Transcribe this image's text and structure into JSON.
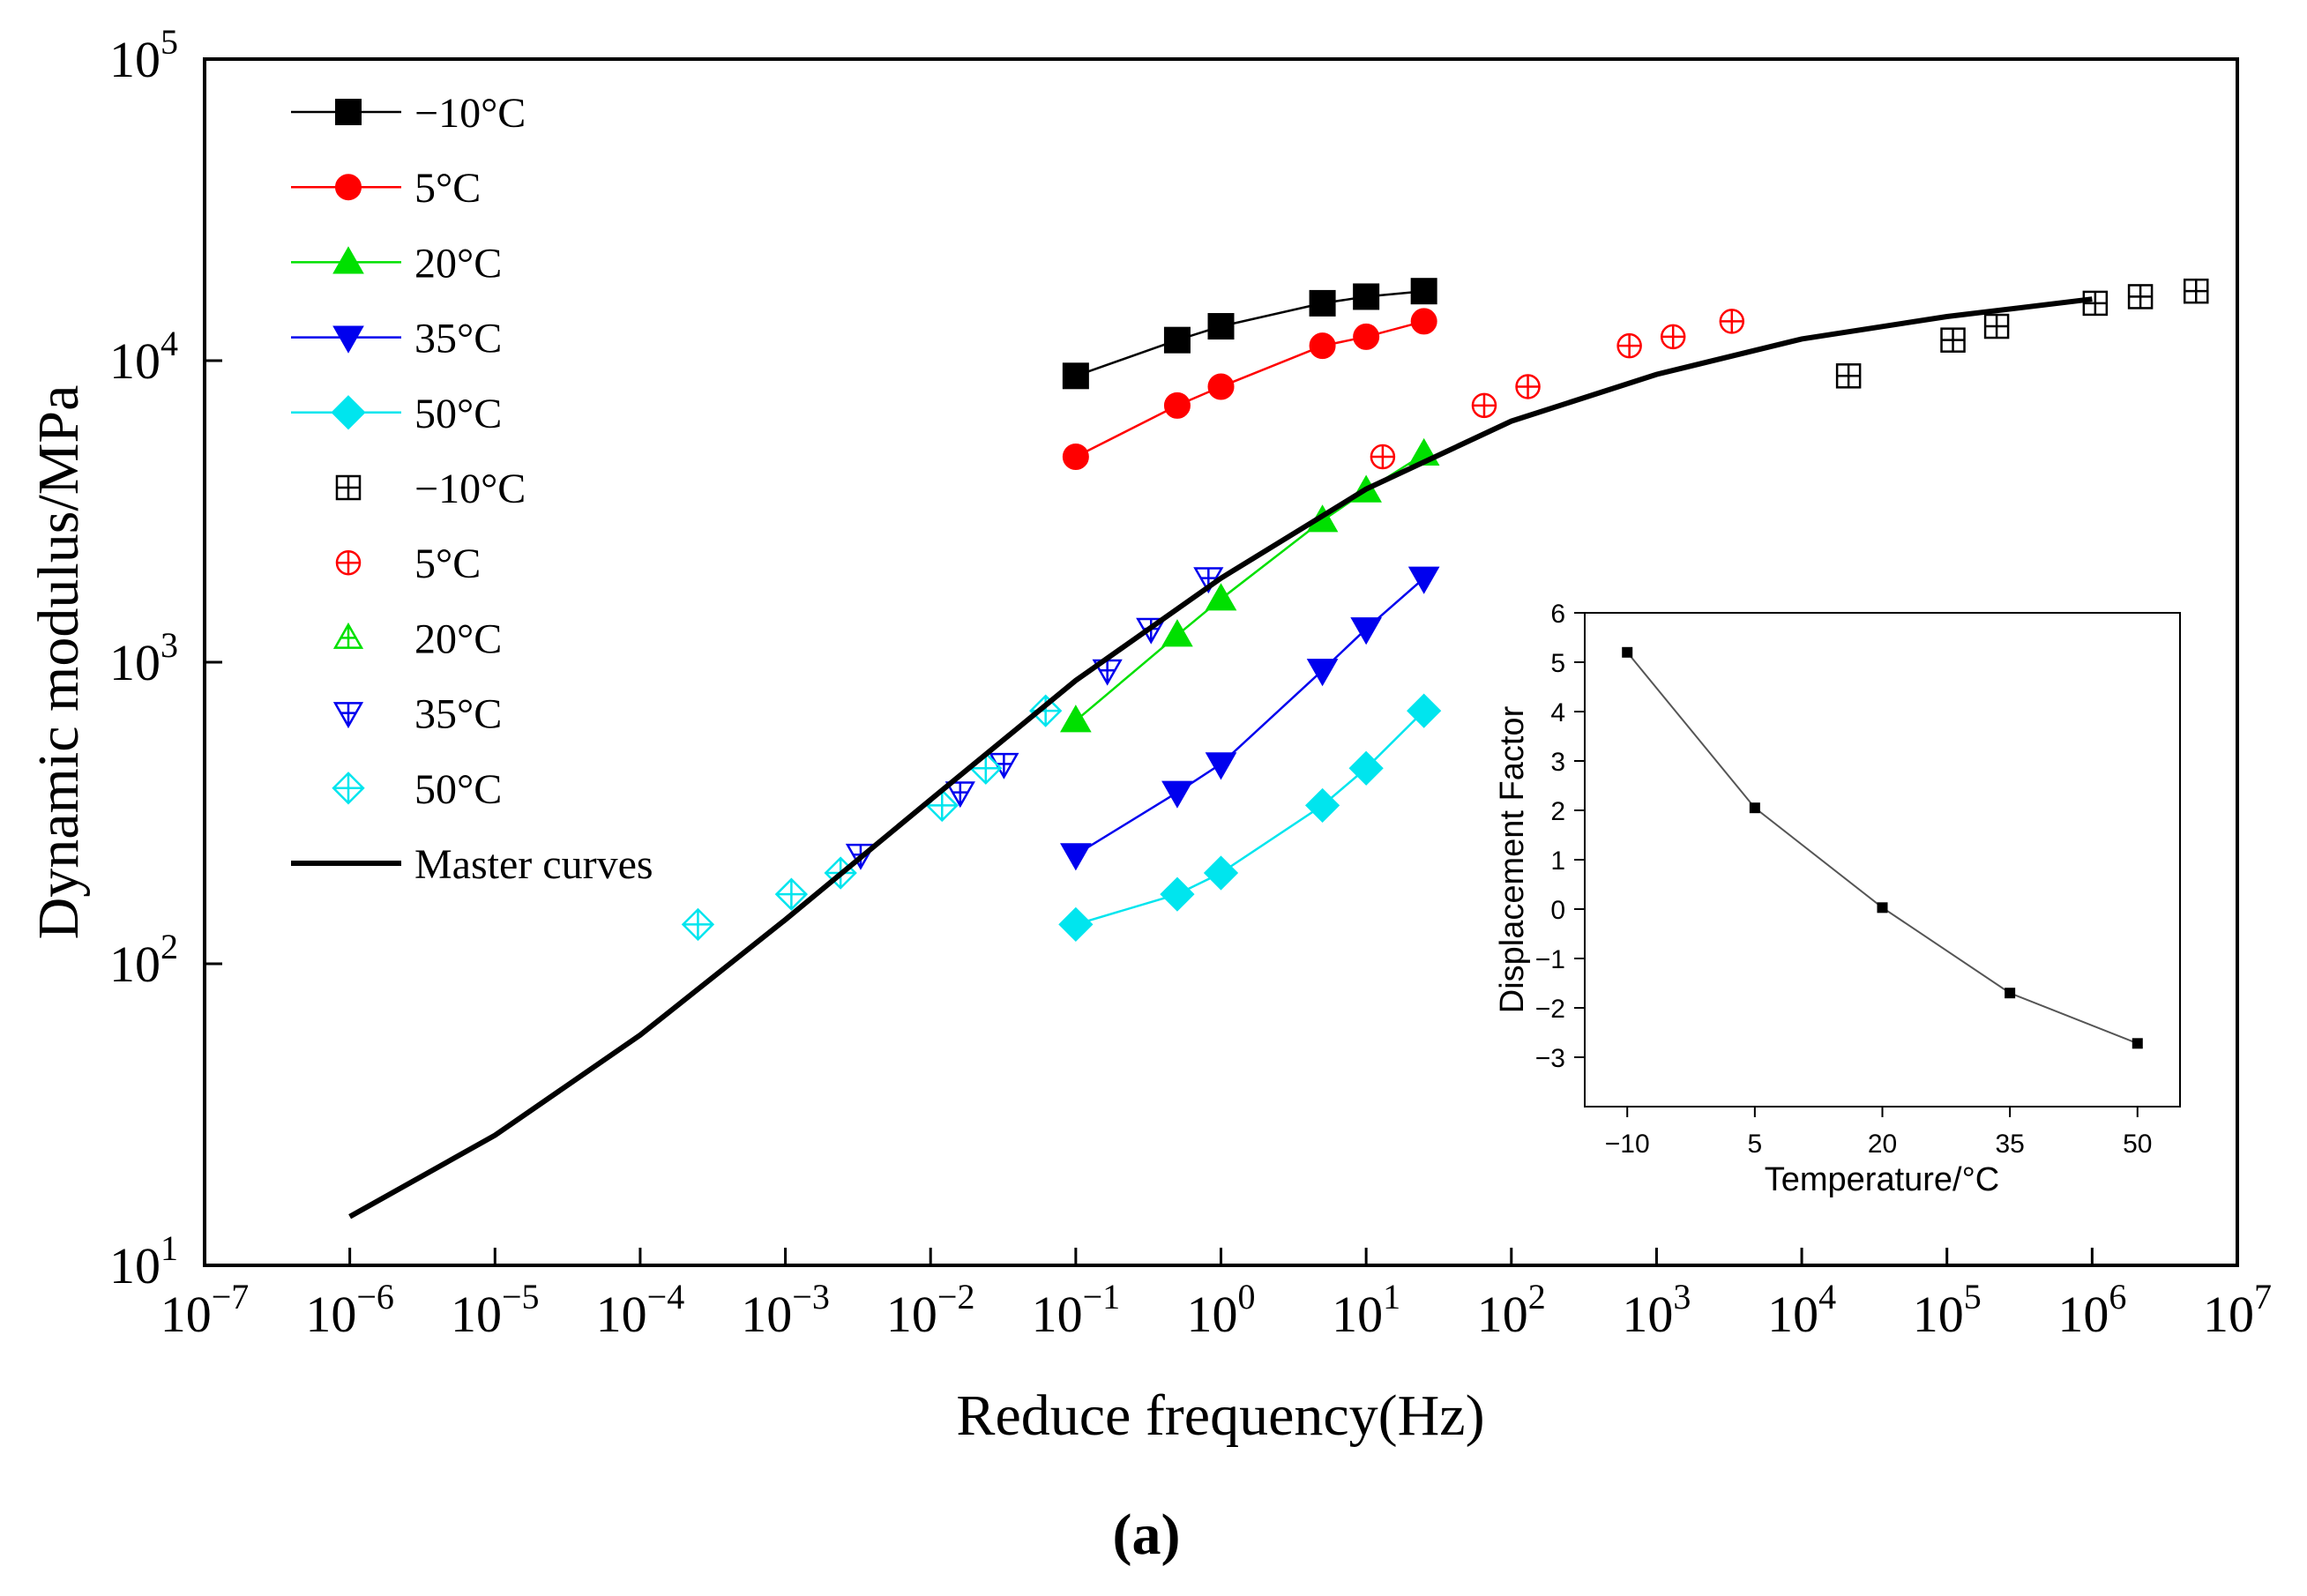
{
  "figure_label": "(a)",
  "chart_data": [
    {
      "type": "line",
      "xlabel": "Reduce frequency(Hz)",
      "ylabel": "Dynamic modulus/MPa",
      "x_scale": "log",
      "y_scale": "log",
      "xlim": [
        1e-07,
        10000000.0
      ],
      "ylim": [
        10,
        100000
      ],
      "x_ticks": [
        {
          "base": "10",
          "exp": "−7",
          "value": 1e-07
        },
        {
          "base": "10",
          "exp": "−6",
          "value": 1e-06
        },
        {
          "base": "10",
          "exp": "−5",
          "value": 1e-05
        },
        {
          "base": "10",
          "exp": "−4",
          "value": 0.0001
        },
        {
          "base": "10",
          "exp": "−3",
          "value": 0.001
        },
        {
          "base": "10",
          "exp": "−2",
          "value": 0.01
        },
        {
          "base": "10",
          "exp": "−1",
          "value": 0.1
        },
        {
          "base": "10",
          "exp": "0",
          "value": 1
        },
        {
          "base": "10",
          "exp": "1",
          "value": 10
        },
        {
          "base": "10",
          "exp": "2",
          "value": 100
        },
        {
          "base": "10",
          "exp": "3",
          "value": 1000
        },
        {
          "base": "10",
          "exp": "4",
          "value": 10000
        },
        {
          "base": "10",
          "exp": "5",
          "value": 100000
        },
        {
          "base": "10",
          "exp": "6",
          "value": 1000000
        },
        {
          "base": "10",
          "exp": "7",
          "value": 10000000
        }
      ],
      "y_ticks": [
        {
          "base": "10",
          "exp": "1",
          "value": 10
        },
        {
          "base": "10",
          "exp": "2",
          "value": 100
        },
        {
          "base": "10",
          "exp": "3",
          "value": 1000
        },
        {
          "base": "10",
          "exp": "4",
          "value": 10000
        },
        {
          "base": "10",
          "exp": "5",
          "value": 100000
        }
      ],
      "grid": false,
      "legend_position": "top-left",
      "series": [
        {
          "name": "−10°C",
          "kind": "measured",
          "marker": "square",
          "color": "#000000",
          "x": [
            0.1,
            0.5,
            1,
            5,
            10,
            25
          ],
          "y": [
            8900,
            11700,
            13000,
            15500,
            16300,
            17000
          ]
        },
        {
          "name": "5°C",
          "kind": "measured",
          "marker": "circle",
          "color": "#ff0000",
          "x": [
            0.1,
            0.5,
            1,
            5,
            10,
            25
          ],
          "y": [
            4800,
            7100,
            8200,
            11200,
            12000,
            13500
          ]
        },
        {
          "name": "20°C",
          "kind": "measured",
          "marker": "triangle-up",
          "color": "#00e000",
          "x": [
            0.1,
            0.5,
            1,
            5,
            10,
            25
          ],
          "y": [
            640,
            1230,
            1620,
            2950,
            3700,
            4900
          ]
        },
        {
          "name": "35°C",
          "kind": "measured",
          "marker": "triangle-down",
          "color": "#0000ee",
          "x": [
            0.1,
            0.5,
            1,
            5,
            10,
            25
          ],
          "y": [
            230,
            370,
            460,
            940,
            1290,
            1900
          ]
        },
        {
          "name": "50°C",
          "kind": "measured",
          "marker": "diamond",
          "color": "#00e5ee",
          "x": [
            0.1,
            0.5,
            1,
            5,
            10,
            25
          ],
          "y": [
            135,
            170,
            200,
            335,
            445,
            690
          ]
        },
        {
          "name": "−10°C",
          "kind": "shifted",
          "marker": "square-plus",
          "color": "#000000",
          "x": [
            21000,
            110000,
            220000,
            1050000,
            2150000,
            5200000
          ],
          "y": [
            8900,
            11700,
            13000,
            15500,
            16300,
            17000
          ]
        },
        {
          "name": "5°C",
          "kind": "shifted",
          "marker": "circle-plus",
          "color": "#ff0000",
          "x": [
            13,
            65,
            130,
            650,
            1300,
            3300
          ],
          "y": [
            4800,
            7100,
            8200,
            11200,
            12000,
            13500
          ]
        },
        {
          "name": "20°C",
          "kind": "shifted",
          "marker": "triangle-up-plus",
          "color": "#00e000",
          "x": [
            0.1,
            0.5,
            1,
            5,
            10,
            25
          ],
          "y": [
            640,
            1230,
            1620,
            2950,
            3700,
            4900
          ]
        },
        {
          "name": "35°C",
          "kind": "shifted",
          "marker": "triangle-down-plus",
          "color": "#0000ee",
          "x": [
            0.0033,
            0.016,
            0.032,
            0.165,
            0.33,
            0.82
          ],
          "y": [
            230,
            370,
            460,
            940,
            1290,
            1900
          ]
        },
        {
          "name": "50°C",
          "kind": "shifted",
          "marker": "diamond-plus",
          "color": "#00e5ee",
          "x": [
            0.00025,
            0.0011,
            0.0024,
            0.012,
            0.024,
            0.062
          ],
          "y": [
            135,
            170,
            200,
            335,
            445,
            690
          ]
        },
        {
          "name": "Master curves",
          "kind": "fit",
          "marker": "none",
          "color": "#000000",
          "x": [
            1e-06,
            1e-05,
            0.0001,
            0.001,
            0.01,
            0.1,
            1,
            10,
            100,
            1000,
            10000,
            100000,
            1000000
          ],
          "y": [
            14.5,
            27,
            58,
            140,
            350,
            870,
            1900,
            3750,
            6300,
            9000,
            11800,
            14000,
            16000
          ]
        }
      ]
    },
    {
      "type": "line",
      "title": "",
      "xlabel": "Temperature/°C",
      "ylabel": "Displacement Factor",
      "x_ticks": [
        "−10",
        "5",
        "20",
        "35",
        "50"
      ],
      "y_ticks": [
        "−3",
        "−2",
        "−1",
        "0",
        "1",
        "2",
        "3",
        "4",
        "5",
        "6"
      ],
      "xlim": [
        -15,
        55
      ],
      "ylim": [
        -4,
        6
      ],
      "grid": false,
      "series": [
        {
          "marker": "square",
          "color": "#000000",
          "x": [
            -10,
            5,
            20,
            35,
            50
          ],
          "y": [
            5.2,
            2.05,
            0.03,
            -1.7,
            -2.72
          ]
        }
      ]
    }
  ]
}
